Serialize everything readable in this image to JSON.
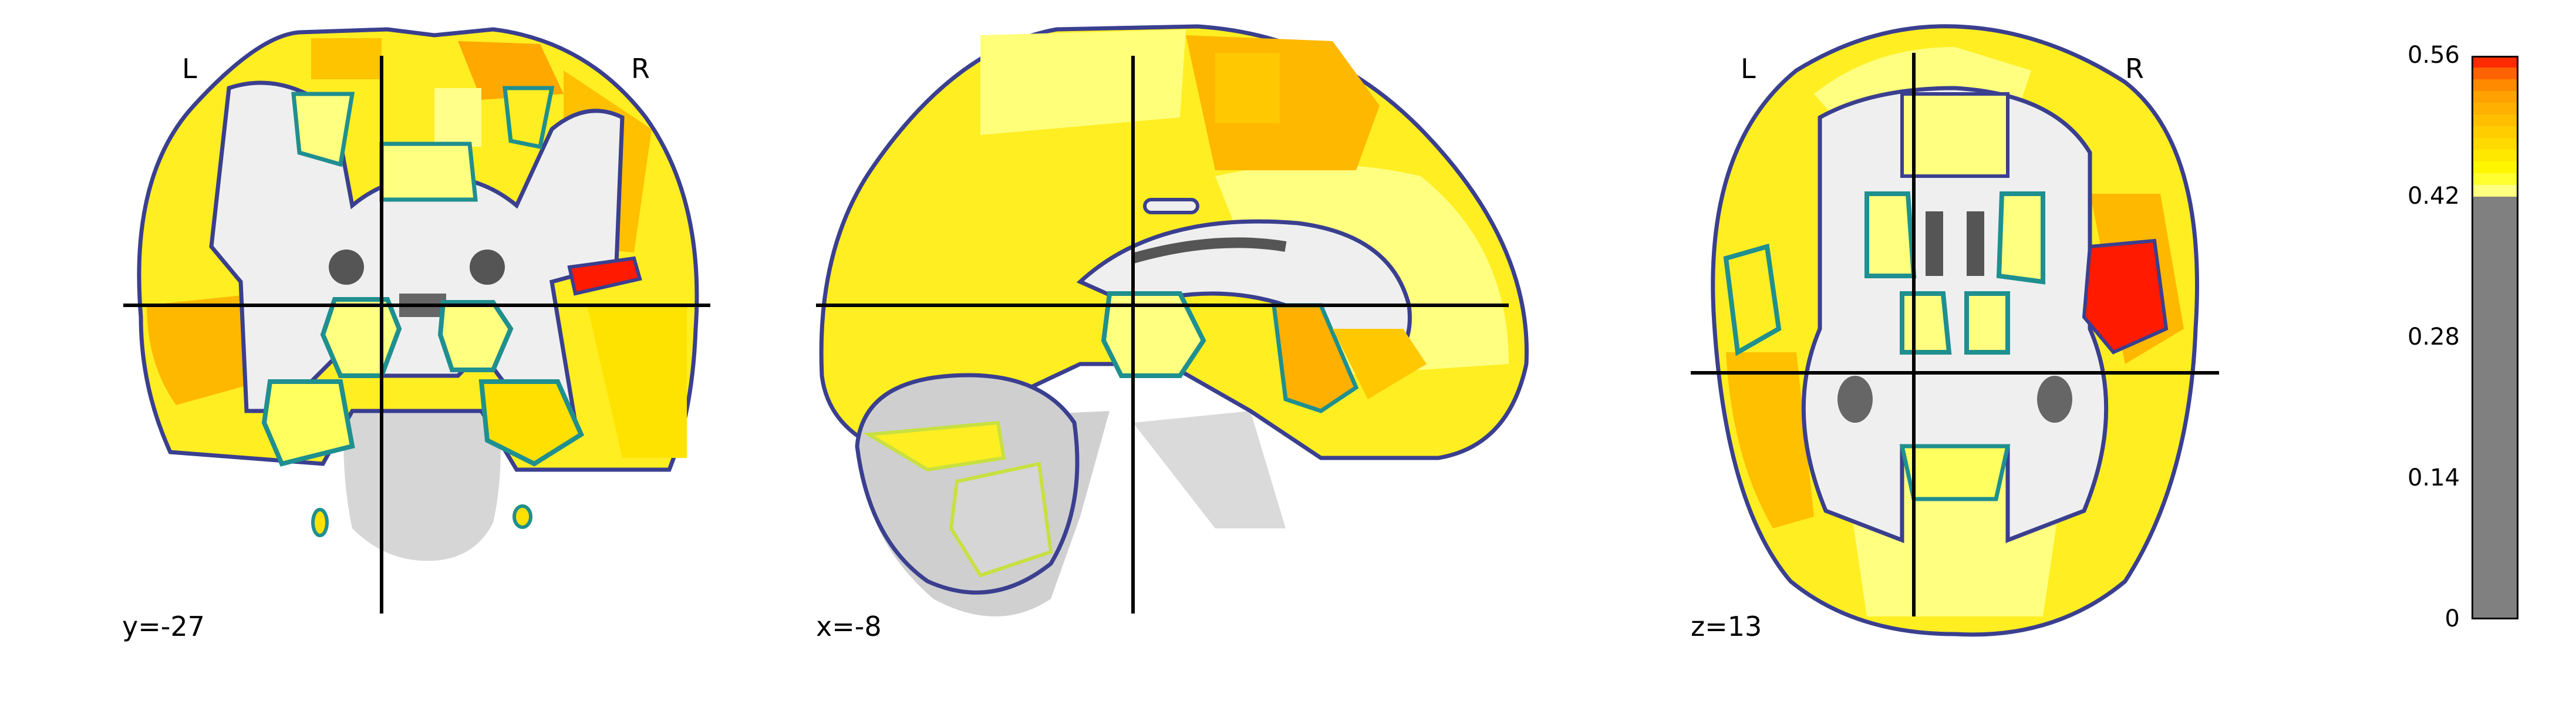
{
  "views": {
    "coronal": {
      "coord_label": "y=-27",
      "left_label": "L",
      "right_label": "R"
    },
    "sagittal": {
      "coord_label": "x=-8"
    },
    "axial": {
      "coord_label": "z=13",
      "left_label": "L",
      "right_label": "R"
    }
  },
  "colorbar": {
    "ticks": [
      "0.56",
      "0.42",
      "0.28",
      "0.14",
      "0"
    ],
    "tick_values": [
      0.56,
      0.42,
      0.28,
      0.14,
      0
    ],
    "vmin": 0,
    "vmax": 0.56,
    "threshold": 0.42,
    "below_threshold_color": "#808080",
    "colors_top_to_bottom": [
      "#ff2a00",
      "#ff6200",
      "#ff8a00",
      "#ffa200",
      "#ffb000",
      "#ffbf00",
      "#ffcd00",
      "#ffda00",
      "#ffe800",
      "#fff600",
      "#ffff30",
      "#ffff80"
    ]
  },
  "colors": {
    "outline_dark": "#3a3f8f",
    "outline_teal": "#1f8f8f",
    "outline_green": "#6fd04f",
    "crosshair": "#000000",
    "brain_gray": "#c9c9c9",
    "white_matter": "#efefef",
    "yellow_low": "#ffff80",
    "yellow": "#ffee22",
    "orange": "#ffb200",
    "red": "#ff1a00"
  }
}
